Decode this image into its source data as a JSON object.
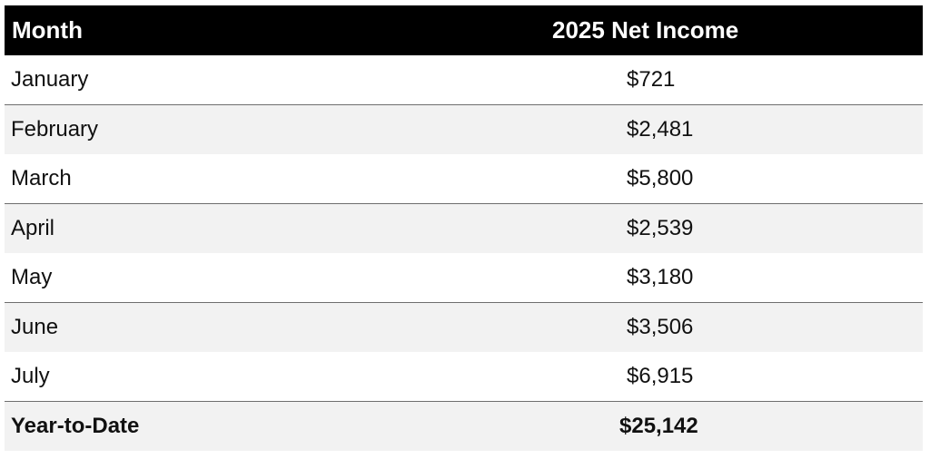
{
  "table": {
    "headers": {
      "month": "Month",
      "income": "2025 Net Income"
    },
    "rows": [
      {
        "month": "January",
        "income": "$721"
      },
      {
        "month": "February",
        "income": "$2,481"
      },
      {
        "month": "March",
        "income": "$5,800"
      },
      {
        "month": "April",
        "income": "$2,539"
      },
      {
        "month": "May",
        "income": "$3,180"
      },
      {
        "month": "June",
        "income": "$3,506"
      },
      {
        "month": "July",
        "income": "$6,915"
      }
    ],
    "total": {
      "label": "Year-to-Date",
      "income": "$25,142"
    }
  }
}
